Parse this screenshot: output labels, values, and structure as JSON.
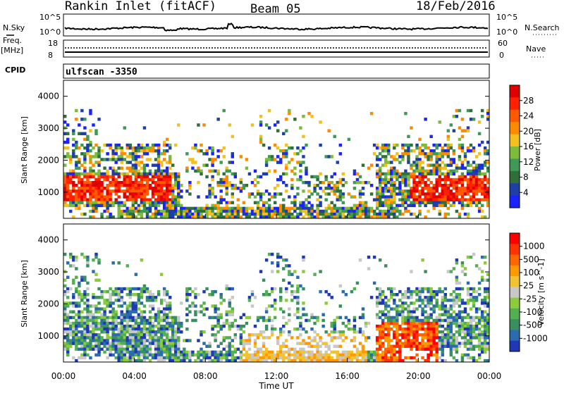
{
  "header": {
    "station": "Rankin Inlet (fitACF)",
    "beam": "Beam 05",
    "date": "18/Feb/2016"
  },
  "noise_panel": {
    "left_label": "N.Sky",
    "right_label": "N.Search",
    "left_ticks": [
      "10^5",
      "10^0"
    ],
    "right_ticks": [
      "10^5",
      "10^0"
    ]
  },
  "freq_panel": {
    "left_label_1": "Freq.",
    "left_label_2": "[MHz]",
    "left_ticks": [
      "18",
      "8"
    ],
    "right_label": "Nave",
    "right_ticks": [
      "60",
      "0"
    ]
  },
  "cpid_panel": {
    "label": "CPID",
    "value": "ulfscan -3350"
  },
  "colors": {
    "power": [
      "#1c22ff",
      "#1f3fa8",
      "#2f6f3a",
      "#3f9a55",
      "#7dbb3c",
      "#f3c020",
      "#ff8a00",
      "#ff5a00",
      "#ff2000",
      "#e00000"
    ],
    "velocity": [
      "#2037b8",
      "#2b6bb0",
      "#3a8f60",
      "#52b050",
      "#8ccc3c",
      "#c8c8c8",
      "#f1c232",
      "#ff9900",
      "#ff6600",
      "#ff3300",
      "#ff0000"
    ]
  },
  "chart_data": [
    {
      "type": "heatmap",
      "name": "power",
      "ylabel": "Slant Range [km]",
      "colorbar_label": "Power [dB]",
      "colorbar_ticks": [
        "28",
        "24",
        "20",
        "16",
        "12",
        "8",
        "4"
      ],
      "y_ticks": [
        "4000",
        "3000",
        "2000",
        "1000"
      ],
      "ylim": [
        180,
        4500
      ],
      "xlim": [
        "00:00",
        "24:00"
      ]
    },
    {
      "type": "heatmap",
      "name": "velocity",
      "ylabel": "Slant Range [km]",
      "colorbar_label": "Velocity [m s^-1]",
      "colorbar_ticks": [
        "1000",
        "500",
        "100",
        "25",
        "-25",
        "-100",
        "-500",
        "-1000"
      ],
      "y_ticks": [
        "4000",
        "3000",
        "2000",
        "1000"
      ],
      "ylim": [
        180,
        4500
      ],
      "xlim": [
        "00:00",
        "24:00"
      ],
      "x_ticks": [
        "00:00",
        "04:00",
        "08:00",
        "12:00",
        "16:00",
        "20:00",
        "00:00"
      ],
      "xlabel": "Time UT"
    }
  ]
}
